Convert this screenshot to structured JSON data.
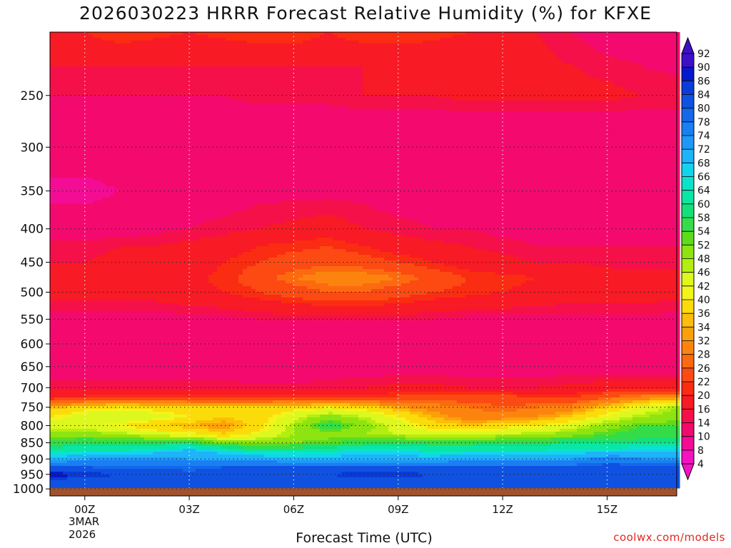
{
  "title": "2026030223 HRRR Forecast Relative Humidity (%) for KFXE",
  "xlabel": "Forecast Time (UTC)",
  "credit": "coolwx.com/models",
  "date_line1": "3MAR",
  "date_line2": "2026",
  "chart_data": {
    "type": "heatmap",
    "title": "2026030223 HRRR Forecast Relative Humidity (%) for KFXE",
    "xlabel": "Forecast Time (UTC)",
    "ylabel": "",
    "x_hours_from_00Z": [
      -1,
      0,
      1,
      2,
      3,
      4,
      5,
      6,
      7,
      8,
      9,
      10,
      11,
      12,
      13,
      14,
      15,
      16,
      17
    ],
    "x_range_hours_from_00Z": [
      -1,
      17
    ],
    "x_ticks": [
      {
        "hour": 0,
        "label": "00Z"
      },
      {
        "hour": 3,
        "label": "03Z"
      },
      {
        "hour": 6,
        "label": "06Z"
      },
      {
        "hour": 9,
        "label": "09Z"
      },
      {
        "hour": 12,
        "label": "12Z"
      },
      {
        "hour": 15,
        "label": "15Z"
      }
    ],
    "y_ticks": [
      250,
      300,
      350,
      400,
      450,
      500,
      550,
      600,
      650,
      700,
      750,
      800,
      850,
      900,
      950,
      1000
    ],
    "y_range_hPa": [
      1025,
      200
    ],
    "y_scale": "log",
    "levels_hPa": [
      200,
      225,
      250,
      275,
      300,
      350,
      400,
      425,
      450,
      475,
      500,
      550,
      600,
      650,
      700,
      725,
      750,
      775,
      800,
      825,
      850,
      875,
      900,
      925,
      950,
      975,
      1000
    ],
    "rh": [
      [
        18,
        20,
        22,
        21,
        20,
        21,
        22,
        22,
        20,
        22,
        22,
        21,
        20,
        18,
        16,
        14,
        12,
        11,
        10
      ],
      [
        16,
        16,
        16,
        16,
        16,
        16,
        16,
        16,
        16,
        16,
        16,
        17,
        17,
        17,
        17,
        16,
        15,
        14,
        13
      ],
      [
        14,
        14,
        14,
        14,
        14,
        14,
        15,
        15,
        15,
        16,
        16,
        16,
        17,
        17,
        17,
        17,
        17,
        16,
        16
      ],
      [
        12,
        12,
        12,
        12,
        12,
        12,
        12,
        12,
        12,
        12,
        12,
        12,
        12,
        12,
        12,
        12,
        12,
        12,
        12
      ],
      [
        12,
        12,
        12,
        12,
        13,
        13,
        12,
        12,
        12,
        10,
        10,
        12,
        12,
        12,
        12,
        14,
        12,
        12,
        12
      ],
      [
        9,
        9,
        10,
        12,
        12,
        12,
        13,
        13,
        13,
        13,
        12,
        12,
        12,
        12,
        12,
        12,
        12,
        11,
        10
      ],
      [
        12,
        12,
        12,
        13,
        14,
        15,
        16,
        17,
        18,
        16,
        15,
        14,
        14,
        13,
        13,
        13,
        12,
        12,
        12
      ],
      [
        15,
        15,
        16,
        16,
        17,
        18,
        20,
        21,
        22,
        20,
        18,
        17,
        16,
        15,
        14,
        14,
        14,
        14,
        14
      ],
      [
        16,
        16,
        17,
        17,
        18,
        20,
        22,
        24,
        25,
        24,
        22,
        20,
        18,
        17,
        16,
        16,
        15,
        15,
        15
      ],
      [
        18,
        18,
        18,
        18,
        19,
        21,
        24,
        28,
        30,
        30,
        28,
        25,
        22,
        21,
        20,
        19,
        18,
        17,
        17
      ],
      [
        18,
        18,
        18,
        18,
        19,
        20,
        22,
        24,
        26,
        26,
        24,
        22,
        21,
        20,
        19,
        18,
        18,
        18,
        17
      ],
      [
        12,
        12,
        12,
        12,
        13,
        13,
        14,
        14,
        14,
        14,
        14,
        14,
        13,
        13,
        13,
        13,
        13,
        13,
        13
      ],
      [
        12,
        12,
        12,
        12,
        12,
        12,
        12,
        12,
        12,
        12,
        12,
        12,
        12,
        12,
        12,
        12,
        12,
        12,
        12
      ],
      [
        12,
        12,
        12,
        12,
        12,
        12,
        11,
        10,
        11,
        12,
        12,
        12,
        12,
        12,
        12,
        12,
        12,
        12,
        12
      ],
      [
        15,
        15,
        15,
        15,
        15,
        15,
        15,
        15,
        16,
        16,
        17,
        17,
        16,
        16,
        16,
        17,
        18,
        18,
        18
      ],
      [
        20,
        21,
        21,
        22,
        22,
        22,
        22,
        21,
        21,
        22,
        23,
        24,
        24,
        24,
        22,
        22,
        26,
        30,
        32
      ],
      [
        34,
        38,
        40,
        38,
        36,
        36,
        36,
        38,
        40,
        38,
        33,
        30,
        28,
        26,
        28,
        30,
        36,
        42,
        48
      ],
      [
        40,
        44,
        46,
        44,
        40,
        36,
        38,
        44,
        50,
        46,
        40,
        34,
        30,
        30,
        32,
        36,
        42,
        48,
        50
      ],
      [
        44,
        44,
        40,
        36,
        34,
        32,
        38,
        48,
        58,
        50,
        44,
        38,
        36,
        38,
        40,
        44,
        50,
        54,
        54
      ],
      [
        50,
        50,
        48,
        44,
        42,
        36,
        42,
        48,
        50,
        48,
        46,
        44,
        44,
        46,
        48,
        50,
        54,
        56,
        56
      ],
      [
        56,
        58,
        58,
        58,
        58,
        52,
        50,
        52,
        54,
        56,
        58,
        56,
        56,
        58,
        58,
        60,
        60,
        60,
        60
      ],
      [
        62,
        64,
        64,
        66,
        70,
        66,
        62,
        62,
        64,
        66,
        66,
        64,
        64,
        64,
        64,
        66,
        66,
        68,
        68
      ],
      [
        70,
        72,
        74,
        74,
        72,
        72,
        72,
        70,
        70,
        70,
        70,
        70,
        72,
        72,
        72,
        72,
        76,
        74,
        74
      ],
      [
        80,
        80,
        78,
        78,
        78,
        80,
        80,
        80,
        80,
        80,
        80,
        80,
        80,
        80,
        80,
        80,
        82,
        82,
        80
      ],
      [
        88,
        86,
        84,
        84,
        82,
        82,
        84,
        84,
        84,
        86,
        86,
        84,
        84,
        84,
        84,
        84,
        84,
        84,
        82
      ],
      [
        82,
        82,
        82,
        82,
        82,
        82,
        82,
        82,
        82,
        82,
        82,
        82,
        82,
        82,
        82,
        82,
        82,
        82,
        82
      ],
      [
        80,
        80,
        80,
        80,
        80,
        80,
        80,
        80,
        80,
        80,
        80,
        80,
        80,
        80,
        80,
        80,
        80,
        80,
        80
      ]
    ],
    "colorbar_ticks": [
      92,
      90,
      86,
      84,
      80,
      78,
      74,
      72,
      68,
      66,
      64,
      60,
      58,
      54,
      52,
      48,
      46,
      42,
      40,
      36,
      34,
      32,
      28,
      26,
      22,
      20,
      16,
      14,
      10,
      8,
      4
    ],
    "colorbar_colors": [
      "#3b10c8",
      "#0518cc",
      "#0a3cd8",
      "#0f52e2",
      "#1468eb",
      "#1a7ff2",
      "#1e98f7",
      "#1eb4fa",
      "#12d4ee",
      "#0ae3cc",
      "#0ae6a4",
      "#14e07a",
      "#34dd48",
      "#5edc1c",
      "#8ee410",
      "#b4ee10",
      "#dcf81e",
      "#f2f41a",
      "#fbdc0a",
      "#fcbe08",
      "#fca00a",
      "#fc840e",
      "#fc6a10",
      "#fc4a12",
      "#fa2c12",
      "#f81a24",
      "#f6104a",
      "#f40a6e",
      "#f40c94",
      "#f412c2"
    ],
    "colorbar_under": "#f412c2",
    "colorbar_over": "#3b10c8",
    "grid": true,
    "legend": "right"
  }
}
